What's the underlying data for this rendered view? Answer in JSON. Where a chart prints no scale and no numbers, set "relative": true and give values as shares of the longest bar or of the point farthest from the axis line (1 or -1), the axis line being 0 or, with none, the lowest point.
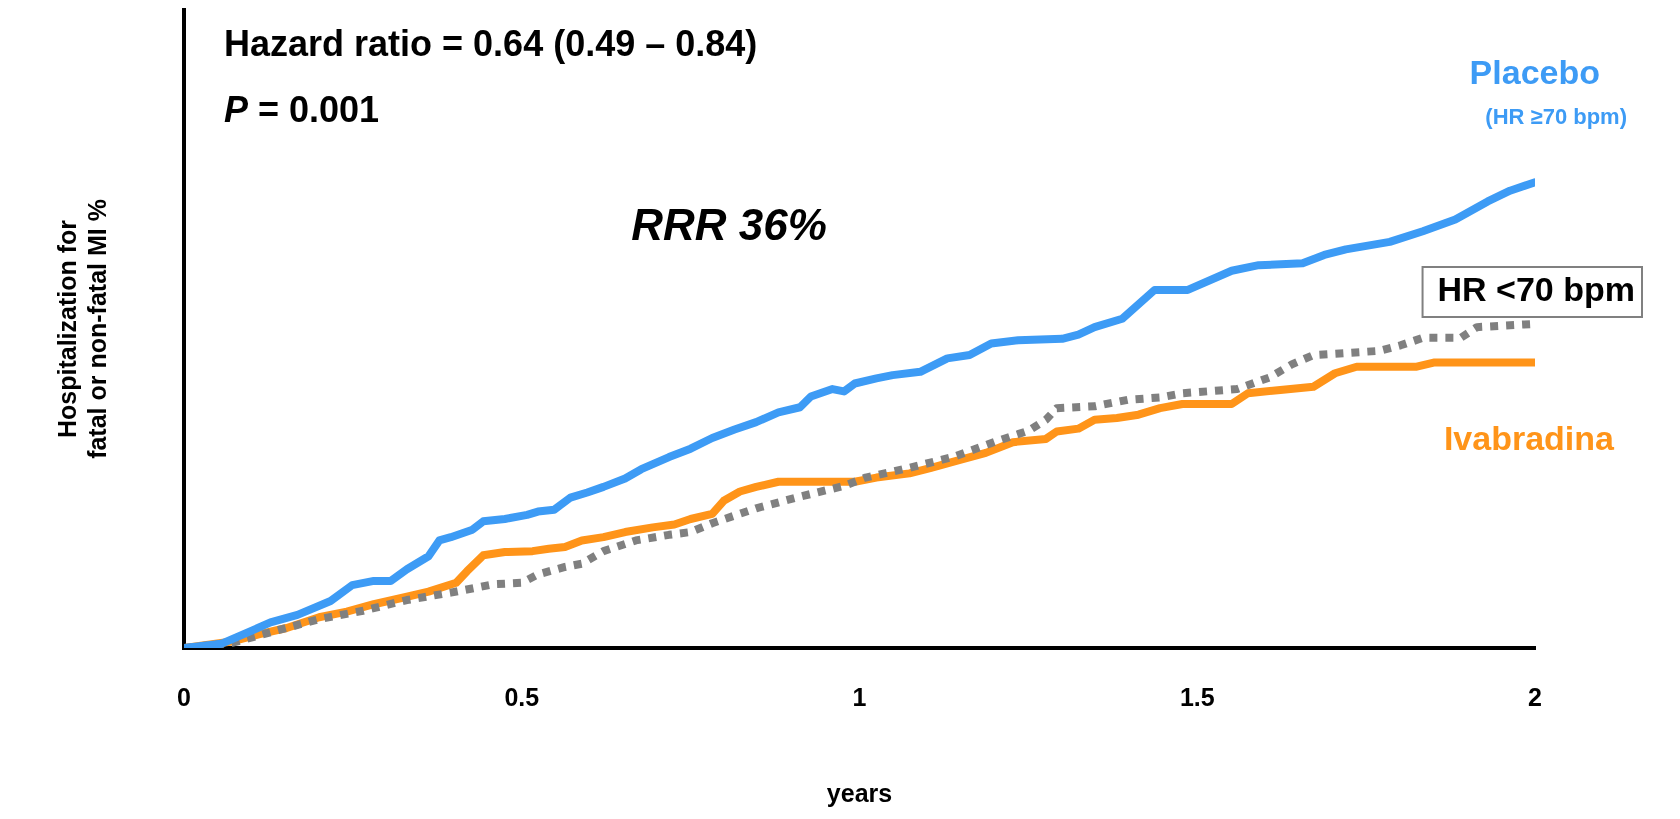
{
  "chart_data": {
    "type": "line",
    "relative": true,
    "xlabel": "years",
    "ylabel": "Hospitalization for\nfatal or non-fatal MI %",
    "xlim": [
      0,
      2
    ],
    "xticks": [
      0,
      0.5,
      1,
      1.5,
      2
    ],
    "grid": false,
    "legend": false,
    "marker": "none",
    "annotations": [
      "Hazard ratio = 0.64 (0.49 – 0.84)",
      "P = 0.001",
      "RRR 36%",
      "(HR ≥70 bpm)"
    ],
    "series": [
      {
        "name": "Placebo",
        "color": "#3d9bf5",
        "line_style": "solid",
        "x": [
          0,
          0.055,
          0.103,
          0.128,
          0.168,
          0.217,
          0.249,
          0.281,
          0.306,
          0.33,
          0.362,
          0.378,
          0.395,
          0.427,
          0.443,
          0.475,
          0.508,
          0.524,
          0.548,
          0.572,
          0.597,
          0.621,
          0.653,
          0.677,
          0.718,
          0.75,
          0.782,
          0.815,
          0.847,
          0.88,
          0.912,
          0.928,
          0.96,
          0.977,
          0.993,
          1.025,
          1.049,
          1.09,
          1.13,
          1.163,
          1.195,
          1.235,
          1.3,
          1.324,
          1.348,
          1.389,
          1.437,
          1.486,
          1.551,
          1.591,
          1.656,
          1.688,
          1.72,
          1.785,
          1.834,
          1.882,
          1.93,
          1.963,
          2
        ],
        "values": [
          0,
          0.009,
          0.039,
          0.055,
          0.071,
          0.101,
          0.135,
          0.144,
          0.144,
          0.169,
          0.197,
          0.231,
          0.238,
          0.254,
          0.272,
          0.277,
          0.286,
          0.293,
          0.297,
          0.323,
          0.334,
          0.346,
          0.364,
          0.384,
          0.41,
          0.428,
          0.451,
          0.469,
          0.485,
          0.506,
          0.517,
          0.54,
          0.556,
          0.551,
          0.568,
          0.579,
          0.586,
          0.593,
          0.622,
          0.629,
          0.654,
          0.661,
          0.664,
          0.673,
          0.689,
          0.707,
          0.769,
          0.769,
          0.81,
          0.822,
          0.826,
          0.844,
          0.856,
          0.872,
          0.895,
          0.92,
          0.959,
          0.982,
          1
        ]
      },
      {
        "name": "HR <70 bpm",
        "color": "#808080",
        "line_style": "dotted",
        "x": [
          0,
          0.071,
          0.136,
          0.2,
          0.265,
          0.33,
          0.395,
          0.459,
          0.5,
          0.524,
          0.564,
          0.589,
          0.621,
          0.669,
          0.718,
          0.75,
          0.782,
          0.847,
          0.912,
          0.977,
          1.009,
          1.074,
          1.138,
          1.203,
          1.251,
          1.276,
          1.292,
          1.348,
          1.397,
          1.445,
          1.478,
          1.559,
          1.607,
          1.64,
          1.672,
          1.769,
          1.801,
          1.834,
          1.89,
          1.914,
          2
        ],
        "values": [
          0,
          0.011,
          0.037,
          0.062,
          0.08,
          0.103,
          0.119,
          0.137,
          0.14,
          0.158,
          0.174,
          0.181,
          0.208,
          0.231,
          0.243,
          0.249,
          0.268,
          0.3,
          0.325,
          0.348,
          0.366,
          0.387,
          0.41,
          0.444,
          0.467,
          0.49,
          0.515,
          0.519,
          0.533,
          0.538,
          0.547,
          0.556,
          0.581,
          0.609,
          0.629,
          0.638,
          0.65,
          0.666,
          0.666,
          0.689,
          0.696
        ]
      },
      {
        "name": "Ivabradina",
        "color": "#ff9419",
        "line_style": "solid",
        "x": [
          0,
          0.071,
          0.112,
          0.152,
          0.2,
          0.241,
          0.281,
          0.33,
          0.362,
          0.403,
          0.419,
          0.443,
          0.475,
          0.516,
          0.54,
          0.564,
          0.589,
          0.621,
          0.653,
          0.694,
          0.726,
          0.75,
          0.782,
          0.799,
          0.823,
          0.847,
          0.88,
          0.993,
          1.025,
          1.074,
          1.106,
          1.146,
          1.187,
          1.227,
          1.276,
          1.292,
          1.324,
          1.348,
          1.381,
          1.413,
          1.445,
          1.478,
          1.551,
          1.575,
          1.623,
          1.672,
          1.704,
          1.736,
          1.825,
          1.85,
          2
        ],
        "values": [
          0,
          0.014,
          0.03,
          0.043,
          0.066,
          0.078,
          0.094,
          0.11,
          0.121,
          0.14,
          0.165,
          0.199,
          0.206,
          0.208,
          0.213,
          0.217,
          0.231,
          0.238,
          0.249,
          0.259,
          0.265,
          0.277,
          0.288,
          0.316,
          0.336,
          0.346,
          0.357,
          0.357,
          0.366,
          0.375,
          0.387,
          0.403,
          0.419,
          0.442,
          0.449,
          0.465,
          0.471,
          0.49,
          0.494,
          0.501,
          0.515,
          0.524,
          0.524,
          0.547,
          0.554,
          0.561,
          0.59,
          0.604,
          0.604,
          0.613,
          0.613
        ]
      }
    ]
  }
}
